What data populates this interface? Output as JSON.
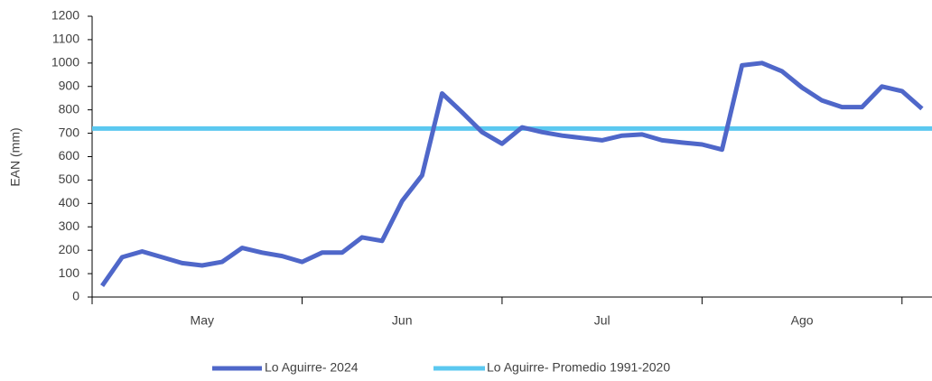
{
  "chart_data": {
    "type": "line",
    "y_label": "EAN (mm)",
    "categories": [
      null,
      null,
      null,
      null,
      null,
      "May",
      null,
      null,
      null,
      null,
      null,
      null,
      null,
      null,
      null,
      "Jun",
      null,
      null,
      null,
      null,
      null,
      null,
      null,
      null,
      null,
      "Jul",
      null,
      null,
      null,
      null,
      null,
      null,
      null,
      null,
      null,
      "Ago",
      null,
      null,
      null,
      null,
      null,
      null
    ],
    "series": [
      {
        "name": "Lo Aguirre- 2024",
        "color": "#4f67c9",
        "values": [
          48,
          170,
          195,
          170,
          145,
          135,
          150,
          210,
          190,
          175,
          150,
          190,
          190,
          255,
          240,
          410,
          520,
          870,
          790,
          705,
          655,
          725,
          705,
          690,
          680,
          670,
          690,
          695,
          670,
          660,
          652,
          630,
          990,
          1000,
          965,
          895,
          840,
          812,
          812,
          900,
          880,
          805
        ]
      }
    ],
    "reference_line": {
      "name": "Lo Aguirre- Promedio 1991-2020",
      "color": "#5bc8f0",
      "value": 720
    },
    "ylim": [
      0,
      1200
    ],
    "yticks": [
      0,
      100,
      200,
      300,
      400,
      500,
      600,
      700,
      800,
      900,
      1000,
      1100,
      1200
    ]
  }
}
